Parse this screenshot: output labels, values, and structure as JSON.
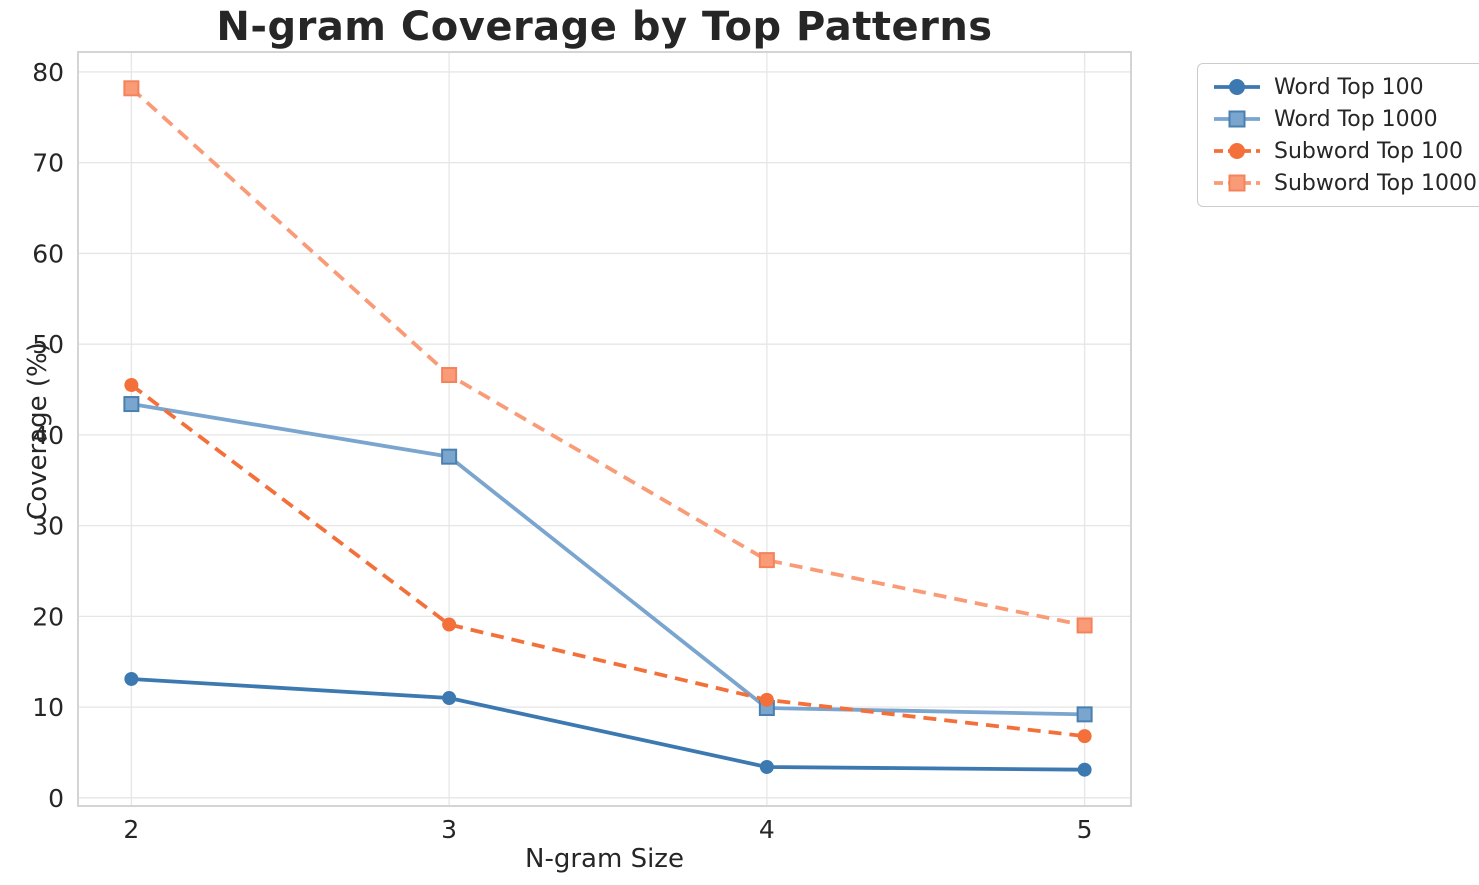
{
  "chart_data": {
    "type": "line",
    "title": "N-gram Coverage by Top Patterns",
    "xlabel": "N-gram Size",
    "ylabel": "Coverage (%)",
    "x": [
      2,
      3,
      4,
      5
    ],
    "xtick_labels": [
      "2",
      "3",
      "4",
      "5"
    ],
    "ytick_values": [
      0,
      10,
      20,
      30,
      40,
      50,
      60,
      70,
      80
    ],
    "ytick_labels": [
      "0",
      "10",
      "20",
      "30",
      "40",
      "50",
      "60",
      "70",
      "80"
    ],
    "xlim": [
      1.832,
      5.146
    ],
    "ylim": [
      -0.9,
      82.2
    ],
    "grid": true,
    "legend_position": "outside-upper-right",
    "series": [
      {
        "name": "Word Top 100",
        "color": "#3d79b1",
        "marker_edge": "#3d79b1",
        "linestyle": "solid",
        "marker": "circle",
        "values": [
          13.1,
          11.0,
          3.4,
          3.1
        ]
      },
      {
        "name": "Word Top 1000",
        "color": "#7aa5ce",
        "marker_edge": "#4a7fae",
        "linestyle": "solid",
        "marker": "square",
        "values": [
          43.4,
          37.6,
          9.9,
          9.2
        ]
      },
      {
        "name": "Subword Top 100",
        "color": "#f3703a",
        "marker_edge": "#f3703a",
        "linestyle": "dashed",
        "marker": "circle",
        "values": [
          45.5,
          19.1,
          10.8,
          6.8
        ]
      },
      {
        "name": "Subword Top 1000",
        "color": "#fa9b78",
        "marker_edge": "#f4835c",
        "linestyle": "dashed",
        "marker": "square",
        "values": [
          78.2,
          46.6,
          26.2,
          19.0
        ]
      }
    ],
    "colors": {
      "text": "#262626",
      "grid": "#e6e6e6",
      "spine": "#d4d4d4",
      "background": "#ffffff"
    }
  }
}
